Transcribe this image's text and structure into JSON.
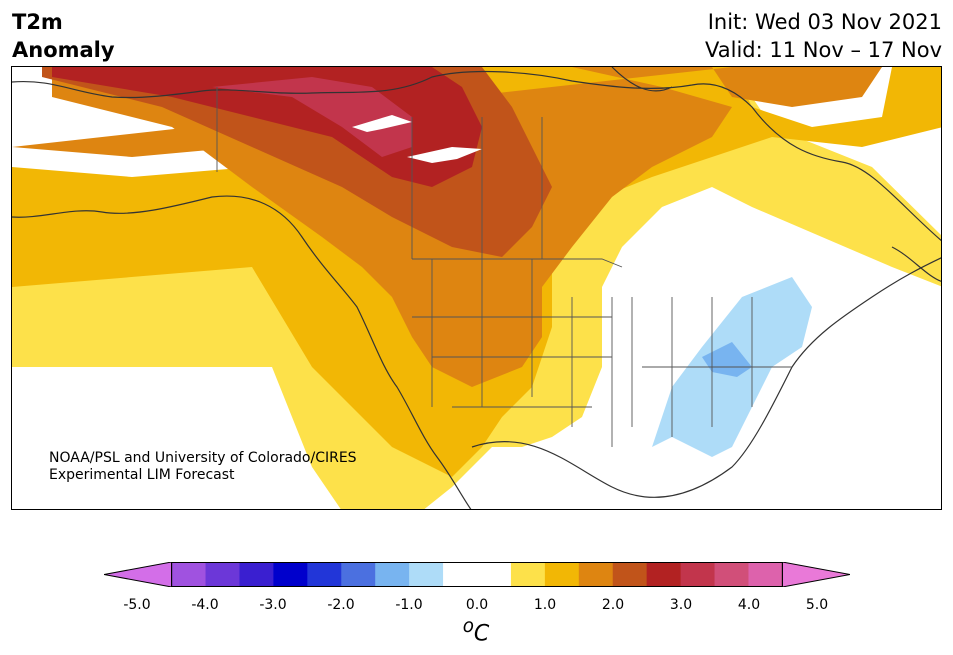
{
  "title": {
    "line1": "T2m",
    "line2": "Anomaly"
  },
  "dates": {
    "init": "Init: Wed 03 Nov 2021",
    "valid": "Valid: 11 Nov – 17 Nov"
  },
  "credit": {
    "line1": "NOAA/PSL and University of Colorado/CIRES",
    "line2": "Experimental LIM Forecast"
  },
  "colorbar": {
    "colors": [
      "#d36ee8",
      "#a052e0",
      "#6c37d8",
      "#3a1fd0",
      "#0000cc",
      "#2236d8",
      "#4b70e0",
      "#78b4f0",
      "#aedcf8",
      "#ffffff",
      "#ffffff",
      "#fde14a",
      "#f2b705",
      "#de8511",
      "#c1541a",
      "#b22222",
      "#c2354c",
      "#d14f79",
      "#dd62ac",
      "#e979d8"
    ],
    "ticks": [
      "-5.0",
      "-4.0",
      "-3.0",
      "-2.0",
      "-1.0",
      "0.0",
      "1.0",
      "2.0",
      "3.0",
      "4.0",
      "5.0"
    ],
    "unit_sup": "o",
    "unit": "C"
  }
}
